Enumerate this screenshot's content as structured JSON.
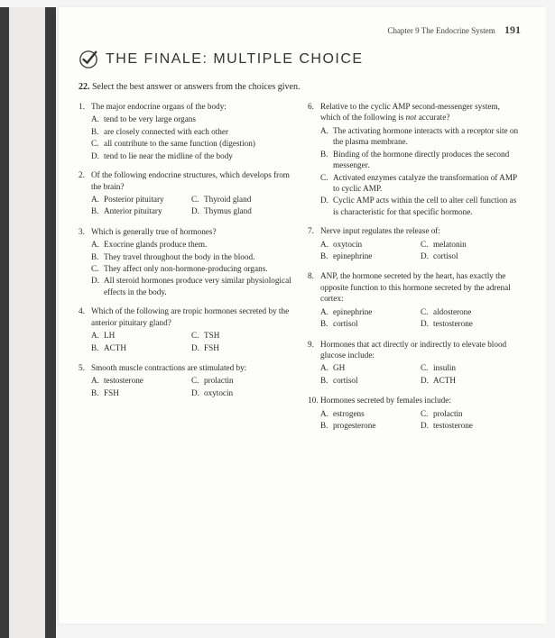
{
  "header": {
    "chapter": "Chapter 9  The Endocrine System",
    "page_number": "191"
  },
  "title": "THE FINALE: MULTIPLE CHOICE",
  "instruction_num": "22.",
  "instruction": "Select the best answer or answers from the choices given.",
  "left": [
    {
      "n": "1.",
      "stem": "The major endocrine organs of the body:",
      "opts": [
        {
          "l": "A.",
          "t": "tend to be very large organs"
        },
        {
          "l": "B.",
          "t": "are closely connected with each other"
        },
        {
          "l": "C.",
          "t": "all contribute to the same function (digestion)"
        },
        {
          "l": "D.",
          "t": "tend to lie near the midline of the body"
        }
      ]
    },
    {
      "n": "2.",
      "stem": "Of the following endocrine structures, which develops from the brain?",
      "cols2": true,
      "opts": [
        {
          "l": "A.",
          "t": "Posterior pituitary"
        },
        {
          "l": "B.",
          "t": "Anterior pituitary"
        },
        {
          "l": "C.",
          "t": "Thyroid gland"
        },
        {
          "l": "D.",
          "t": "Thymus gland"
        }
      ]
    },
    {
      "n": "3.",
      "stem": "Which is generally true of hormones?",
      "opts": [
        {
          "l": "A.",
          "t": "Exocrine glands produce them."
        },
        {
          "l": "B.",
          "t": "They travel throughout the body in the blood."
        },
        {
          "l": "C.",
          "t": "They affect only non-hormone-producing organs."
        },
        {
          "l": "D.",
          "t": "All steroid hormones produce very similar physiological effects in the body."
        }
      ]
    },
    {
      "n": "4.",
      "stem": "Which of the following are tropic hormones secreted by the anterior pituitary gland?",
      "cols2": true,
      "opts": [
        {
          "l": "A.",
          "t": "LH"
        },
        {
          "l": "B.",
          "t": "ACTH"
        },
        {
          "l": "C.",
          "t": "TSH"
        },
        {
          "l": "D.",
          "t": "FSH"
        }
      ]
    },
    {
      "n": "5.",
      "stem": "Smooth muscle contractions are stimulated by:",
      "cols2": true,
      "opts": [
        {
          "l": "A.",
          "t": "testosterone"
        },
        {
          "l": "B.",
          "t": "FSH"
        },
        {
          "l": "C.",
          "t": "prolactin"
        },
        {
          "l": "D.",
          "t": "oxytocin"
        }
      ]
    }
  ],
  "right": [
    {
      "n": "6.",
      "stem": "Relative to the cyclic AMP second-messenger system, which of the following is not accurate?",
      "stem_italic_word": "not",
      "opts": [
        {
          "l": "A.",
          "t": "The activating hormone interacts with a receptor site on the plasma membrane."
        },
        {
          "l": "B.",
          "t": "Binding of the hormone directly produces the second messenger."
        },
        {
          "l": "C.",
          "t": "Activated enzymes catalyze the transformation of AMP to cyclic AMP."
        },
        {
          "l": "D.",
          "t": "Cyclic AMP acts within the cell to alter cell function as is characteristic for that specific hormone."
        }
      ]
    },
    {
      "n": "7.",
      "stem": "Nerve input regulates the release of:",
      "cols2": true,
      "opts": [
        {
          "l": "A.",
          "t": "oxytocin"
        },
        {
          "l": "B.",
          "t": "epinephrine"
        },
        {
          "l": "C.",
          "t": "melatonin"
        },
        {
          "l": "D.",
          "t": "cortisol"
        }
      ]
    },
    {
      "n": "8.",
      "stem": "ANP, the hormone secreted by the heart, has exactly the opposite function to this hormone secreted by the adrenal cortex:",
      "cols2": true,
      "opts": [
        {
          "l": "A.",
          "t": "epinephrine"
        },
        {
          "l": "B.",
          "t": "cortisol"
        },
        {
          "l": "C.",
          "t": "aldosterone"
        },
        {
          "l": "D.",
          "t": "testosterone"
        }
      ]
    },
    {
      "n": "9.",
      "stem": "Hormones that act directly or indirectly to elevate blood glucose include:",
      "cols2": true,
      "opts": [
        {
          "l": "A.",
          "t": "GH"
        },
        {
          "l": "B.",
          "t": "cortisol"
        },
        {
          "l": "C.",
          "t": "insulin"
        },
        {
          "l": "D.",
          "t": "ACTH"
        }
      ]
    },
    {
      "n": "10.",
      "stem": "Hormones secreted by females include:",
      "cols2": true,
      "opts": [
        {
          "l": "A.",
          "t": "estrogens"
        },
        {
          "l": "B.",
          "t": "progesterone"
        },
        {
          "l": "C.",
          "t": "prolactin"
        },
        {
          "l": "D.",
          "t": "testosterone"
        }
      ]
    }
  ]
}
